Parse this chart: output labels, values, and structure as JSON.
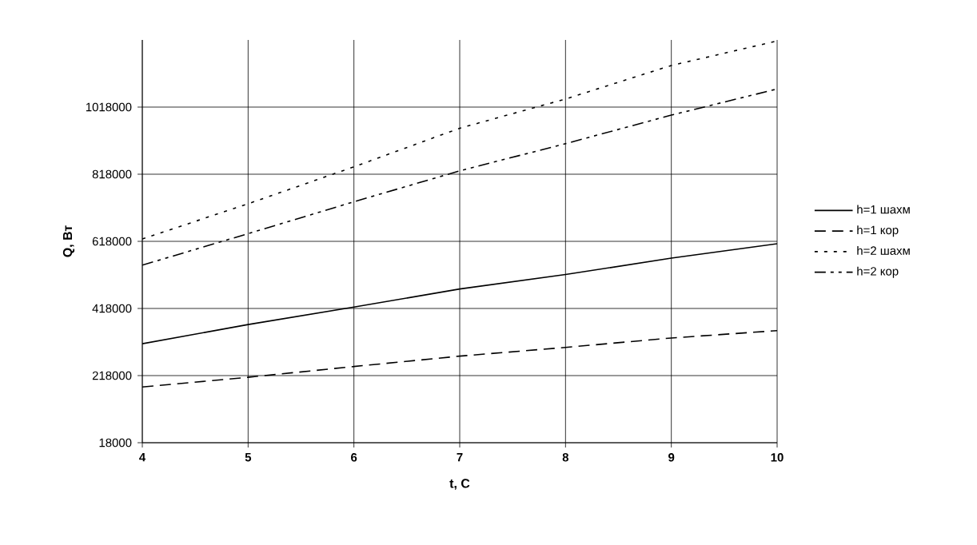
{
  "chart_data": {
    "type": "line",
    "xlabel": "t, C",
    "ylabel": "Q, Вт",
    "x": [
      4,
      5,
      6,
      7,
      8,
      9,
      10
    ],
    "series": [
      {
        "name": "h=1 шахм",
        "color": "#000000",
        "line_style": "solid",
        "values": [
          313000,
          370000,
          422000,
          476000,
          519000,
          568000,
          611000
        ]
      },
      {
        "name": "h=1 кор",
        "color": "#000000",
        "line_style": "dashed",
        "values": [
          184000,
          213000,
          245000,
          276000,
          302000,
          330000,
          352000
        ]
      },
      {
        "name": "h=2 шахм",
        "color": "#000000",
        "line_style": "dotted",
        "values": [
          625000,
          730000,
          840000,
          955000,
          1042000,
          1142000,
          1215000
        ]
      },
      {
        "name": "h=2 кор",
        "color": "#000000",
        "line_style": "dashdot",
        "values": [
          547000,
          641000,
          736000,
          828000,
          909000,
          994000,
          1072000
        ]
      }
    ],
    "xlim": [
      4,
      10
    ],
    "xticks": [
      4,
      5,
      6,
      7,
      8,
      9,
      10
    ],
    "ylim": [
      18000,
      1218000
    ],
    "yticks": [
      18000,
      218000,
      418000,
      618000,
      818000,
      1018000
    ],
    "grid": true,
    "legend": "right",
    "marker": "none"
  }
}
